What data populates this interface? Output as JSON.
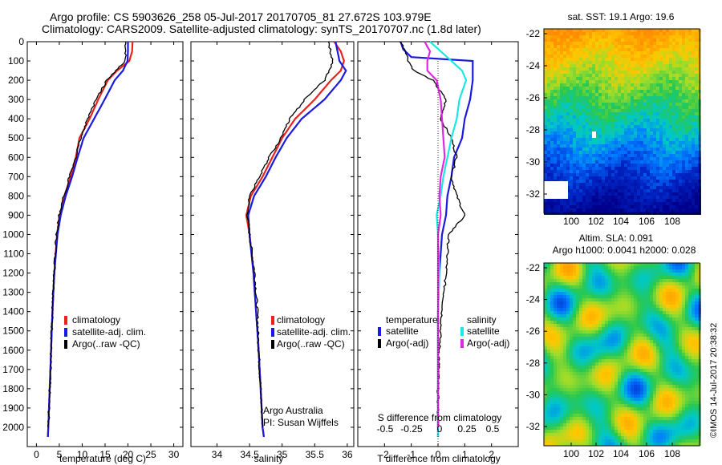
{
  "header": {
    "line1": "Argo profile: CS 5903626_258 05-Jul-2017 20170705_81 27.672S 103.979E",
    "line2": "Climatology: CARS2009. Satellite-adjusted climatology: synTS_20170707.nc (1.8d later)"
  },
  "colors": {
    "climatology": "#e8231e",
    "satellite": "#1a1ae0",
    "argo": "#000000",
    "sat_salinity": "#1ee6e6",
    "argo_salinity": "#e028e0"
  },
  "legend_profiles": {
    "climatology": "climatology",
    "satellite": "satellite-adj. clim.",
    "argo": "Argo(..raw -QC)"
  },
  "legend_diff": {
    "temperature": "temperature",
    "salinity": "salinity",
    "satellite": "satellite",
    "argo": "Argo(-adj)"
  },
  "credit": {
    "line1": "Argo Australia",
    "line2": "PI: Susan Wijffels"
  },
  "stamp": "©IMOS 14-Jul-2017 20:38:32",
  "chart_data": [
    {
      "type": "line",
      "xlabel": "temperature (deg C)",
      "xlim": [
        -2,
        32
      ],
      "ylim": [
        2100,
        0
      ],
      "x_ticks": [
        0,
        5,
        10,
        15,
        20,
        25,
        30
      ],
      "y_ticks": [
        0,
        100,
        200,
        300,
        400,
        500,
        600,
        700,
        800,
        900,
        1000,
        1100,
        1200,
        1300,
        1400,
        1500,
        1600,
        1700,
        1800,
        1900,
        2000
      ],
      "series": [
        {
          "name": "climatology",
          "color": "#e8231e",
          "depth": [
            0,
            50,
            100,
            150,
            200,
            300,
            400,
            500,
            600,
            700,
            800,
            900,
            1000,
            1200,
            1400,
            1600,
            1800,
            2000,
            2050
          ],
          "values": [
            21,
            20.9,
            20.3,
            17.6,
            15.6,
            13.5,
            11.6,
            9.4,
            8.6,
            7.5,
            6.1,
            5.1,
            4.5,
            3.9,
            3.5,
            3.2,
            2.9,
            2.6,
            2.5
          ]
        },
        {
          "name": "satellite-adj. clim.",
          "color": "#1a1ae0",
          "depth": [
            0,
            50,
            100,
            150,
            200,
            300,
            400,
            500,
            600,
            700,
            800,
            900,
            1000,
            1200,
            1400,
            1600,
            1800,
            2000,
            2050
          ],
          "values": [
            20,
            20,
            19.9,
            18.9,
            17.1,
            14.9,
            12.6,
            10.3,
            9.0,
            7.8,
            6.4,
            5.3,
            4.6,
            3.9,
            3.5,
            3.2,
            2.9,
            2.6,
            2.5
          ]
        },
        {
          "name": "Argo(..raw -QC)",
          "color": "#000000",
          "depth": [
            0,
            50,
            100,
            150,
            200,
            300,
            400,
            500,
            600,
            700,
            800,
            900,
            1000,
            1200,
            1400,
            1600,
            1800,
            2000
          ],
          "values": [
            19.5,
            19.5,
            19.4,
            17.4,
            15.4,
            13.0,
            11.2,
            9.7,
            8.6,
            7.2,
            6.0,
            5.0,
            4.4,
            3.9,
            3.5,
            3.2,
            2.9,
            2.6
          ]
        }
      ]
    },
    {
      "type": "line",
      "xlabel": "salinity",
      "xlim": [
        33.6,
        36.1
      ],
      "ylim": [
        2100,
        0
      ],
      "x_ticks": [
        34,
        34.5,
        35,
        35.5,
        36
      ],
      "series": [
        {
          "name": "climatology",
          "color": "#e8231e",
          "depth": [
            0,
            50,
            100,
            150,
            200,
            300,
            400,
            500,
            600,
            700,
            800,
            900,
            1000,
            1200,
            1400,
            1600,
            1800,
            2000,
            2050
          ],
          "values": [
            35.8,
            35.9,
            35.95,
            35.9,
            35.75,
            35.5,
            35.2,
            35.0,
            34.85,
            34.7,
            34.52,
            34.45,
            34.5,
            34.56,
            34.6,
            34.64,
            34.67,
            34.7,
            34.72
          ]
        },
        {
          "name": "satellite-adj. clim.",
          "color": "#1a1ae0",
          "depth": [
            0,
            50,
            100,
            150,
            200,
            300,
            400,
            500,
            600,
            700,
            800,
            900,
            1000,
            1200,
            1400,
            1600,
            1800,
            2000,
            2050
          ],
          "values": [
            35.82,
            35.85,
            35.88,
            35.98,
            35.9,
            35.65,
            35.3,
            35.07,
            34.9,
            34.75,
            34.57,
            34.48,
            34.5,
            34.56,
            34.6,
            34.64,
            34.67,
            34.7,
            34.72
          ]
        },
        {
          "name": "Argo(..raw -QC)",
          "color": "#000000",
          "depth": [
            0,
            50,
            100,
            150,
            200,
            300,
            400,
            500,
            600,
            700,
            800,
            900,
            1000,
            1200,
            1400,
            1600,
            1800,
            2000
          ],
          "values": [
            35.72,
            35.74,
            35.78,
            35.72,
            35.65,
            35.35,
            35.12,
            34.98,
            34.8,
            34.65,
            34.5,
            34.47,
            34.5,
            34.58,
            34.62,
            34.64,
            34.67,
            34.7
          ]
        }
      ]
    },
    {
      "type": "line",
      "xlabel": "T difference from climatology",
      "title_bottom": "S difference from climatology",
      "xlim": [
        -3,
        3
      ],
      "ylim": [
        2100,
        0
      ],
      "x_ticks": [
        -2,
        -1,
        0,
        1,
        2
      ],
      "s_ticks": [
        "-0.5",
        "-0.25",
        "0",
        "0.25",
        "0.5"
      ],
      "series": [
        {
          "name": "temperature satellite",
          "color": "#1a1ae0",
          "depth": [
            0,
            40,
            80,
            100,
            120,
            160,
            200,
            300,
            400,
            500,
            600,
            700,
            800,
            900,
            1000,
            1200,
            1400,
            1600,
            1800,
            2000,
            2050
          ],
          "values": [
            -1.4,
            -1.3,
            -1.0,
            1.3,
            1.3,
            1.3,
            1.3,
            1.2,
            1.0,
            0.9,
            0.6,
            0.5,
            0.35,
            0.3,
            0.15,
            0.05,
            0.0,
            0.0,
            0.0,
            0.0,
            0.0
          ]
        },
        {
          "name": "temperature Argo(-adj)",
          "color": "#000000",
          "depth": [
            0,
            50,
            100,
            150,
            200,
            300,
            400,
            500,
            600,
            700,
            800,
            900,
            1000,
            1200,
            1400,
            1600,
            1800,
            2000
          ],
          "values": [
            -1.4,
            -1.2,
            -1.1,
            -0.9,
            -0.2,
            0.3,
            0.1,
            0.5,
            0.7,
            0.5,
            0.7,
            1.0,
            0.4,
            0.3,
            0.15,
            0.05,
            0.0,
            0.0
          ]
        },
        {
          "name": "salinity satellite",
          "color": "#1ee6e6",
          "depth": [
            0,
            50,
            100,
            150,
            200,
            300,
            400,
            500,
            600,
            700,
            800,
            900,
            1000,
            1200,
            1400,
            1600,
            1800,
            2000,
            2050
          ],
          "values": [
            -0.3,
            0.1,
            0.5,
            0.9,
            1.05,
            0.8,
            0.7,
            0.5,
            0.35,
            0.2,
            0.1,
            -0.05,
            0.0,
            0.05,
            0.0,
            0.0,
            0.0,
            0.0,
            0.0
          ]
        },
        {
          "name": "salinity Argo(-adj)",
          "color": "#e028e0",
          "depth": [
            0,
            50,
            100,
            150,
            200,
            300,
            400,
            500,
            600,
            700,
            800,
            900,
            1000,
            1200,
            1400,
            1600,
            1800,
            2000
          ],
          "values": [
            -0.5,
            -0.3,
            -0.4,
            -0.4,
            -0.05,
            0.1,
            0.15,
            0.2,
            0.25,
            0.1,
            0.05,
            0.1,
            0.0,
            0.0,
            0.0,
            0.0,
            0.0,
            0.0
          ]
        }
      ]
    },
    {
      "type": "heatmap",
      "title": "sat. SST: 19.1  Argo: 19.6",
      "x_ticks": [
        "100",
        "102",
        "104",
        "106",
        "108"
      ],
      "y_ticks": [
        "-22",
        "-24",
        "-26",
        "-28",
        "-30",
        "-32"
      ]
    },
    {
      "type": "heatmap",
      "title_line1": "Altim. SLA: 0.091",
      "title_line2": "Argo h1000: 0.0041  h2000: 0.028",
      "x_ticks": [
        "100",
        "102",
        "104",
        "106",
        "108"
      ],
      "y_ticks": [
        "-22",
        "-24",
        "-26",
        "-28",
        "-30",
        "-32"
      ]
    }
  ]
}
